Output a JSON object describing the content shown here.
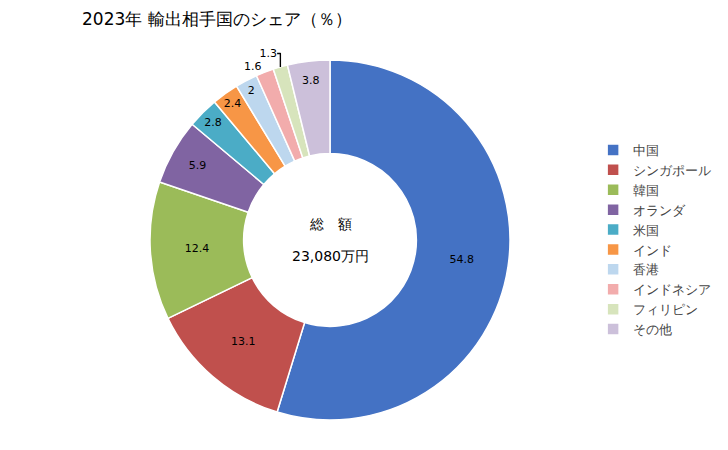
{
  "chart_data": {
    "type": "donut",
    "title": "2023年 輸出相手国のシェア（％）",
    "annotations": [
      "総　額",
      "23,080万円"
    ],
    "categories": [
      "中国",
      "シンガポール",
      "韓国",
      "オランダ",
      "米国",
      "インド",
      "香港",
      "インドネシア",
      "フィリピン",
      "その他"
    ],
    "values": [
      54.8,
      13.1,
      12.4,
      5.9,
      2.8,
      2.4,
      2.0,
      1.6,
      1.3,
      3.8
    ],
    "colors": [
      "#4472C4",
      "#C0504D",
      "#9BBB59",
      "#8064A2",
      "#4BACC6",
      "#F79646",
      "#BDD7EE",
      "#F2ACAC",
      "#D7E4BC",
      "#CCC0DA"
    ],
    "data_labels": true,
    "legend": "right"
  }
}
